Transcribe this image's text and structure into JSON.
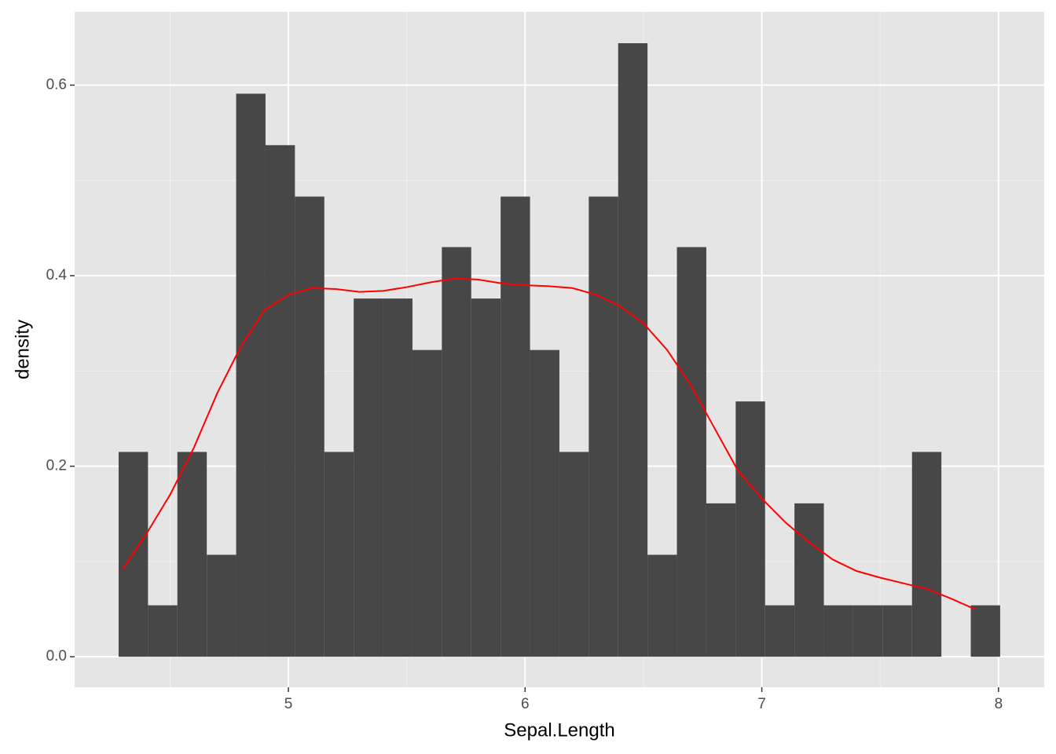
{
  "chart_data": {
    "type": "histogram",
    "xlabel": "Sepal.Length",
    "ylabel": "density",
    "bins": [
      4.2828,
      4.4069,
      4.531,
      4.6552,
      4.7793,
      4.9034,
      5.0276,
      5.1517,
      5.2759,
      5.4,
      5.5241,
      5.6483,
      5.7724,
      5.8966,
      6.0207,
      6.1448,
      6.269,
      6.3931,
      6.5172,
      6.6414,
      6.7655,
      6.8897,
      7.0138,
      7.1379,
      7.2621,
      7.3862,
      7.5103,
      7.6345,
      7.7586,
      7.8828,
      8.0069
    ],
    "values": [
      0.215,
      0.054,
      0.215,
      0.107,
      0.591,
      0.537,
      0.483,
      0.215,
      0.376,
      0.376,
      0.322,
      0.43,
      0.376,
      0.483,
      0.322,
      0.215,
      0.483,
      0.644,
      0.107,
      0.43,
      0.161,
      0.268,
      0.054,
      0.161,
      0.054,
      0.054,
      0.054,
      0.215,
      0,
      0.054
    ],
    "color": "#474747",
    "density": {
      "color": "#ff0000",
      "x": [
        4.3,
        4.4,
        4.5,
        4.6,
        4.7,
        4.8,
        4.9,
        5.0,
        5.1,
        5.2,
        5.3,
        5.4,
        5.5,
        5.6,
        5.7,
        5.8,
        5.9,
        6.0,
        6.1,
        6.2,
        6.3,
        6.4,
        6.5,
        6.6,
        6.7,
        6.8,
        6.9,
        7.0,
        7.1,
        7.2,
        7.3,
        7.4,
        7.5,
        7.6,
        7.7,
        7.8,
        7.9
      ],
      "values": [
        0.092,
        0.129,
        0.17,
        0.219,
        0.277,
        0.326,
        0.364,
        0.38,
        0.387,
        0.386,
        0.383,
        0.384,
        0.388,
        0.393,
        0.397,
        0.396,
        0.392,
        0.39,
        0.389,
        0.387,
        0.38,
        0.368,
        0.35,
        0.322,
        0.285,
        0.24,
        0.195,
        0.166,
        0.141,
        0.12,
        0.102,
        0.09,
        0.083,
        0.077,
        0.071,
        0.061,
        0.05
      ]
    },
    "xlim": [
      4.097,
      8.193
    ],
    "ylim": [
      -0.032,
      0.677
    ],
    "xticks": [
      5,
      6,
      7,
      8
    ],
    "yticks": [
      {
        "value": 0,
        "label": "0.0"
      },
      {
        "value": 0.2,
        "label": "0.2"
      },
      {
        "value": 0.4,
        "label": "0.4"
      },
      {
        "value": 0.6,
        "label": "0.6"
      }
    ],
    "xminor": [
      4.5,
      5.5,
      6.5,
      7.5
    ],
    "yminor": [
      0.1,
      0.3,
      0.5
    ],
    "grid": true
  }
}
